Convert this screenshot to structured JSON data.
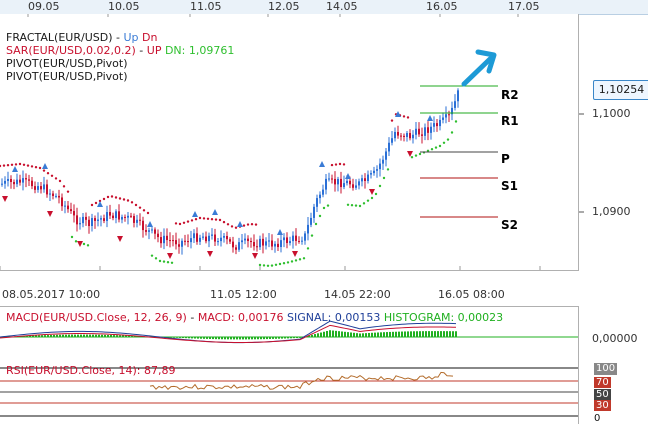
{
  "top_dates": [
    "09.05",
    "10.05",
    "11.05",
    "12.05",
    "14.05",
    "16.05",
    "17.05"
  ],
  "legend": {
    "fractal_name": "FRACTAL(EUR/USD)",
    "fractal_sep": "-",
    "fractal_up": "Up",
    "fractal_dn": "Dn",
    "sar_name": "SAR(EUR/USD,0.02,0.2)",
    "sar_sep": "-",
    "sar_up": "UP",
    "sar_dn": "DN: 1,09761",
    "pivot1": "PIVOT(EUR/USD,Pivot)",
    "pivot2": "PIVOT(EUR/USD,Pivot)"
  },
  "pivot_levels": [
    "R2",
    "R1",
    "P",
    "S1",
    "S2"
  ],
  "price_scale": {
    "current": "1,10254",
    "ticks": [
      "1,1000",
      "1,0900"
    ]
  },
  "bottom_times": [
    "08.05.2017 10:00",
    "11.05 12:00",
    "14.05 22:00",
    "16.05 08:00"
  ],
  "macd": {
    "label": "MACD(EUR/USD.Close, 12, 26, 9)",
    "sep": "-",
    "macd_value": "MACD: 0,00176",
    "signal_value": "SIGNAL: 0,00153",
    "hist_value": "HISTOGRAM: 0,00023",
    "zero_tick": "0,00000"
  },
  "rsi": {
    "label": "RSI(EUR/USD.Close, 14): 87,89",
    "levels": [
      "100",
      "70",
      "50",
      "30",
      "0"
    ]
  },
  "colors": {
    "bull": "#2a6fd6",
    "bear": "#c8102e",
    "sar_up": "#c8102e",
    "sar_dn": "#2fbf2f",
    "fractal": "#3a7bd5",
    "pivot_r": "#1faa1f",
    "pivot_p": "#444444",
    "pivot_s": "#b01010",
    "arrow": "#1d9ad6",
    "macd_line": "#1f3f99",
    "signal_line": "#c8102e",
    "hist": "#20b020",
    "rsi_line": "#b36b2a",
    "rsi70": "#c0392b",
    "rsi50": "#444444",
    "rsi30": "#c0392b"
  },
  "icons": [
    "trend-up-arrow-icon",
    "fractal-up-marker-icon",
    "fractal-down-marker-icon"
  ]
}
